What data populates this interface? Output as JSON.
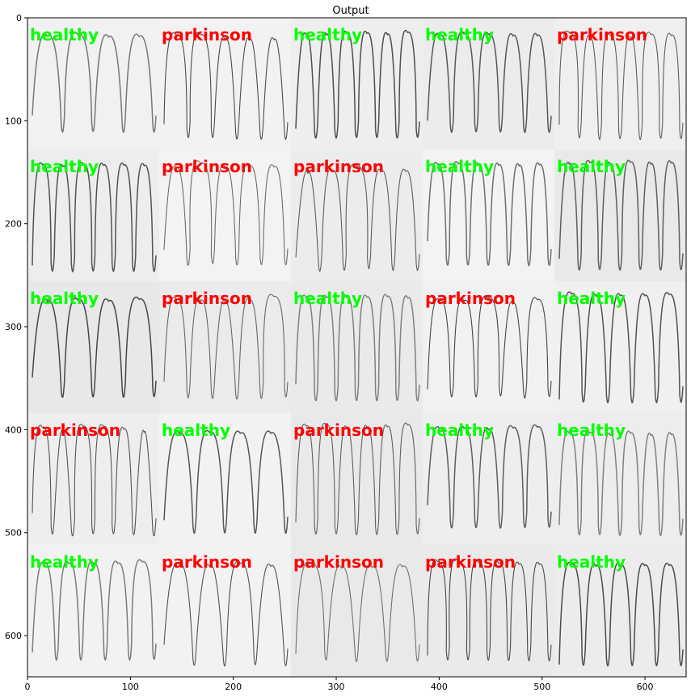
{
  "chart_data": {
    "type": "heatmap",
    "title": "Output",
    "xlabel": "",
    "ylabel": "",
    "xlim": [
      0,
      640
    ],
    "ylim": [
      640,
      0
    ],
    "xticks": [
      0,
      100,
      200,
      300,
      400,
      500,
      600
    ],
    "yticks": [
      0,
      100,
      200,
      300,
      400,
      500,
      600
    ],
    "grid": false,
    "tile_size": 128,
    "rows": 5,
    "cols": 5,
    "predictions": [
      [
        "healthy",
        "parkinson",
        "healthy",
        "healthy",
        "parkinson"
      ],
      [
        "healthy",
        "parkinson",
        "parkinson",
        "healthy",
        "healthy"
      ],
      [
        "healthy",
        "parkinson",
        "healthy",
        "parkinson",
        "healthy"
      ],
      [
        "parkinson",
        "healthy",
        "parkinson",
        "healthy",
        "healthy"
      ],
      [
        "healthy",
        "parkinson",
        "parkinson",
        "parkinson",
        "healthy"
      ]
    ],
    "label_colors": {
      "healthy": "#00ff00",
      "parkinson": "#ff0000"
    }
  }
}
